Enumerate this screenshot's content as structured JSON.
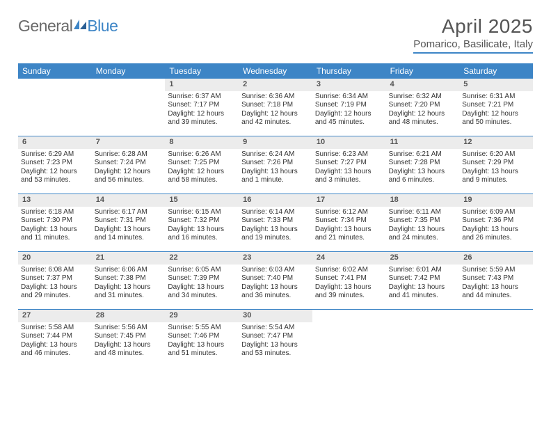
{
  "logo": {
    "text_general": "General",
    "text_blue": "Blue"
  },
  "title": "April 2025",
  "subtitle": "Pomarico, Basilicate, Italy",
  "colors": {
    "accent": "#3d85c6",
    "header_bg": "#3d85c6",
    "daynum_bg": "#ececec",
    "text": "#333333",
    "title_text": "#555555"
  },
  "weekdays": [
    "Sunday",
    "Monday",
    "Tuesday",
    "Wednesday",
    "Thursday",
    "Friday",
    "Saturday"
  ],
  "first_weekday_index": 2,
  "days_in_month": 30,
  "days": {
    "1": {
      "sunrise": "6:37 AM",
      "sunset": "7:17 PM",
      "daylight": "12 hours and 39 minutes."
    },
    "2": {
      "sunrise": "6:36 AM",
      "sunset": "7:18 PM",
      "daylight": "12 hours and 42 minutes."
    },
    "3": {
      "sunrise": "6:34 AM",
      "sunset": "7:19 PM",
      "daylight": "12 hours and 45 minutes."
    },
    "4": {
      "sunrise": "6:32 AM",
      "sunset": "7:20 PM",
      "daylight": "12 hours and 48 minutes."
    },
    "5": {
      "sunrise": "6:31 AM",
      "sunset": "7:21 PM",
      "daylight": "12 hours and 50 minutes."
    },
    "6": {
      "sunrise": "6:29 AM",
      "sunset": "7:23 PM",
      "daylight": "12 hours and 53 minutes."
    },
    "7": {
      "sunrise": "6:28 AM",
      "sunset": "7:24 PM",
      "daylight": "12 hours and 56 minutes."
    },
    "8": {
      "sunrise": "6:26 AM",
      "sunset": "7:25 PM",
      "daylight": "12 hours and 58 minutes."
    },
    "9": {
      "sunrise": "6:24 AM",
      "sunset": "7:26 PM",
      "daylight": "13 hours and 1 minute."
    },
    "10": {
      "sunrise": "6:23 AM",
      "sunset": "7:27 PM",
      "daylight": "13 hours and 3 minutes."
    },
    "11": {
      "sunrise": "6:21 AM",
      "sunset": "7:28 PM",
      "daylight": "13 hours and 6 minutes."
    },
    "12": {
      "sunrise": "6:20 AM",
      "sunset": "7:29 PM",
      "daylight": "13 hours and 9 minutes."
    },
    "13": {
      "sunrise": "6:18 AM",
      "sunset": "7:30 PM",
      "daylight": "13 hours and 11 minutes."
    },
    "14": {
      "sunrise": "6:17 AM",
      "sunset": "7:31 PM",
      "daylight": "13 hours and 14 minutes."
    },
    "15": {
      "sunrise": "6:15 AM",
      "sunset": "7:32 PM",
      "daylight": "13 hours and 16 minutes."
    },
    "16": {
      "sunrise": "6:14 AM",
      "sunset": "7:33 PM",
      "daylight": "13 hours and 19 minutes."
    },
    "17": {
      "sunrise": "6:12 AM",
      "sunset": "7:34 PM",
      "daylight": "13 hours and 21 minutes."
    },
    "18": {
      "sunrise": "6:11 AM",
      "sunset": "7:35 PM",
      "daylight": "13 hours and 24 minutes."
    },
    "19": {
      "sunrise": "6:09 AM",
      "sunset": "7:36 PM",
      "daylight": "13 hours and 26 minutes."
    },
    "20": {
      "sunrise": "6:08 AM",
      "sunset": "7:37 PM",
      "daylight": "13 hours and 29 minutes."
    },
    "21": {
      "sunrise": "6:06 AM",
      "sunset": "7:38 PM",
      "daylight": "13 hours and 31 minutes."
    },
    "22": {
      "sunrise": "6:05 AM",
      "sunset": "7:39 PM",
      "daylight": "13 hours and 34 minutes."
    },
    "23": {
      "sunrise": "6:03 AM",
      "sunset": "7:40 PM",
      "daylight": "13 hours and 36 minutes."
    },
    "24": {
      "sunrise": "6:02 AM",
      "sunset": "7:41 PM",
      "daylight": "13 hours and 39 minutes."
    },
    "25": {
      "sunrise": "6:01 AM",
      "sunset": "7:42 PM",
      "daylight": "13 hours and 41 minutes."
    },
    "26": {
      "sunrise": "5:59 AM",
      "sunset": "7:43 PM",
      "daylight": "13 hours and 44 minutes."
    },
    "27": {
      "sunrise": "5:58 AM",
      "sunset": "7:44 PM",
      "daylight": "13 hours and 46 minutes."
    },
    "28": {
      "sunrise": "5:56 AM",
      "sunset": "7:45 PM",
      "daylight": "13 hours and 48 minutes."
    },
    "29": {
      "sunrise": "5:55 AM",
      "sunset": "7:46 PM",
      "daylight": "13 hours and 51 minutes."
    },
    "30": {
      "sunrise": "5:54 AM",
      "sunset": "7:47 PM",
      "daylight": "13 hours and 53 minutes."
    }
  },
  "labels": {
    "sunrise": "Sunrise:",
    "sunset": "Sunset:",
    "daylight": "Daylight:"
  }
}
